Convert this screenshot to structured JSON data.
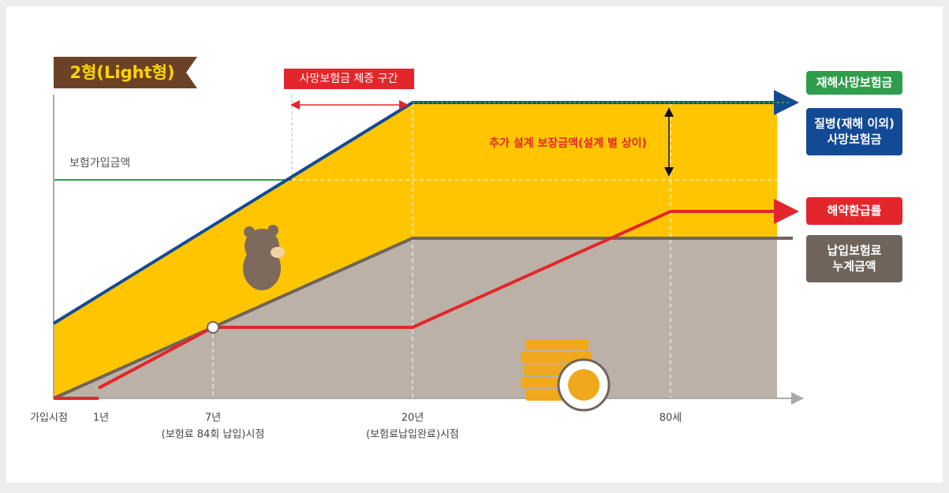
{
  "title": "2형(Light형)",
  "zone_label": "사망보험금 체증 구간",
  "insured_amount_label": "보험가입금액",
  "extra_label": "추가 설계 보장금액(설계 별 상이)",
  "legend": [
    {
      "lines": [
        "재해사망보험금"
      ],
      "color": "#2f9e4c"
    },
    {
      "lines": [
        "질병(재해 이외)",
        "사망보험금"
      ],
      "color": "#134a96"
    },
    {
      "lines": [
        "해약환급률"
      ],
      "color": "#e3262b"
    },
    {
      "lines": [
        "납입보험료",
        "누계금액"
      ],
      "color": "#6f645b"
    }
  ],
  "x_labels": [
    {
      "lines": [
        "가입시점"
      ]
    },
    {
      "lines": [
        "1년"
      ]
    },
    {
      "lines": [
        "7년",
        "(보험료 84회 납입)시점"
      ]
    },
    {
      "lines": [
        "20년",
        "(보험료납입완료)시점"
      ]
    },
    {
      "lines": [
        "80세"
      ]
    }
  ]
}
